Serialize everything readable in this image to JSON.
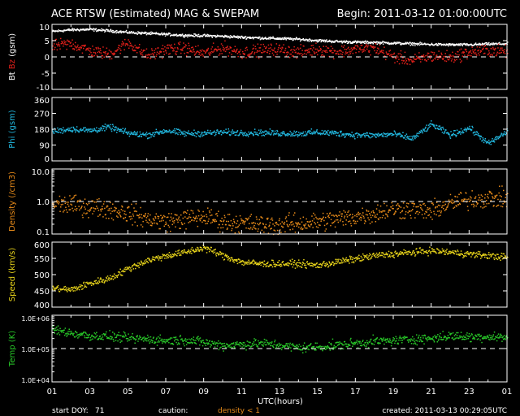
{
  "header": {
    "title": "ACE RTSW (Estimated) MAG & SWEPAM",
    "begin": "Begin: 2011-03-12 01:00:00UTC"
  },
  "footer": {
    "start_doy_label": "start DOY:",
    "start_doy": "71",
    "caution_label": "caution:",
    "caution_value": "density < 1",
    "created": "created: 2011-03-13 00:29:05UTC"
  },
  "colors": {
    "bt": "#ffffff",
    "bz": "#e0201a",
    "phi": "#22b8e0",
    "density": "#e68a1a",
    "speed": "#e6d21a",
    "temp": "#28c828",
    "axis": "#ffffff",
    "background": "#000000"
  },
  "chart_data": {
    "type": "scatter",
    "x_axis": {
      "label": "UTC(hours)",
      "ticks": [
        "01",
        "03",
        "05",
        "07",
        "09",
        "11",
        "13",
        "15",
        "17",
        "19",
        "21",
        "23",
        "01"
      ],
      "range_hours": [
        0,
        24
      ]
    },
    "panels": [
      {
        "id": "mag",
        "ylabel": [
          {
            "text": "Bt",
            "color": "#ffffff"
          },
          {
            "text": " Bz",
            "color": "#e0201a"
          },
          {
            "text": " (gsm)",
            "color": "#ffffff"
          }
        ],
        "ylim": [
          -10,
          10
        ],
        "scale": "linear",
        "yticks": [
          10,
          5,
          0,
          -5,
          -10
        ],
        "ytick_labels": [
          "10",
          "5",
          "0",
          "-5",
          "-10"
        ],
        "dashed_line": 0,
        "series": [
          {
            "name": "Bt",
            "color": "#ffffff",
            "knots_hours": [
              0,
              1,
              2,
              3,
              4,
              5,
              6,
              7,
              8,
              9,
              10,
              11,
              12,
              13,
              14,
              15,
              16,
              17,
              18,
              19,
              20,
              21,
              22,
              23,
              24
            ],
            "values": [
              8.0,
              8.5,
              8.6,
              8.2,
              7.7,
              7.4,
              7.1,
              6.8,
              6.7,
              6.5,
              6.2,
              6.0,
              5.8,
              5.6,
              5.2,
              4.9,
              4.7,
              4.6,
              4.4,
              4.2,
              4.0,
              3.9,
              3.9,
              4.1,
              4.2
            ],
            "noise": 0.35
          },
          {
            "name": "Bz",
            "color": "#e0201a",
            "knots_hours": [
              0,
              1,
              2,
              3,
              4,
              5,
              6,
              7,
              8,
              9,
              10,
              11,
              12,
              13,
              14,
              15,
              16,
              17,
              18,
              19,
              20,
              21,
              22,
              23,
              24
            ],
            "values": [
              3.5,
              4.2,
              2.0,
              1.0,
              4.5,
              0.5,
              2.5,
              2.8,
              1.2,
              3.0,
              1.5,
              2.2,
              2.4,
              1.6,
              2.6,
              1.8,
              2.4,
              2.8,
              0.2,
              -1.0,
              0.5,
              0.0,
              1.6,
              2.2,
              1.8
            ],
            "noise": 1.6
          }
        ]
      },
      {
        "id": "phi",
        "ylabel": [
          {
            "text": "Phi (gsm)",
            "color": "#22b8e0"
          }
        ],
        "ylim": [
          0,
          360
        ],
        "scale": "linear",
        "yticks": [
          360,
          270,
          180,
          90,
          0
        ],
        "ytick_labels": [
          "360",
          "270",
          "180",
          "90",
          "0"
        ],
        "series": [
          {
            "name": "Phi",
            "color": "#22b8e0",
            "knots_hours": [
              0,
              1,
              2,
              3,
              4,
              5,
              6,
              7,
              8,
              9,
              10,
              11,
              12,
              13,
              14,
              15,
              16,
              17,
              18,
              19,
              20,
              21,
              22,
              23,
              24
            ],
            "values": [
              170,
              185,
              175,
              195,
              160,
              150,
              175,
              158,
              160,
              165,
              162,
              164,
              160,
              158,
              165,
              160,
              150,
              148,
              155,
              130,
              210,
              150,
              190,
              100,
              170
            ],
            "noise": 15
          }
        ]
      },
      {
        "id": "density",
        "ylabel": [
          {
            "text": "Density (/cm3)",
            "color": "#e68a1a"
          }
        ],
        "ylim": [
          0.1,
          10
        ],
        "scale": "log",
        "yticks": [
          10,
          1,
          0.1
        ],
        "ytick_labels": [
          "10.0",
          "1.0",
          "0.1"
        ],
        "dashed_line": 1,
        "series": [
          {
            "name": "Density",
            "color": "#e68a1a",
            "knots_hours": [
              0,
              1,
              2,
              3,
              4,
              5,
              6,
              7,
              8,
              9,
              10,
              11,
              12,
              13,
              14,
              15,
              16,
              17,
              18,
              19,
              20,
              21,
              22,
              23,
              24
            ],
            "values": [
              0.9,
              0.8,
              0.7,
              0.6,
              0.45,
              0.3,
              0.25,
              0.3,
              0.35,
              0.25,
              0.22,
              0.2,
              0.2,
              0.22,
              0.25,
              0.3,
              0.35,
              0.45,
              0.6,
              0.6,
              0.5,
              0.9,
              1.2,
              1.3,
              1.3
            ],
            "noise": 0.25
          }
        ]
      },
      {
        "id": "speed",
        "ylabel": [
          {
            "text": "Speed (km/s)",
            "color": "#e6d21a"
          }
        ],
        "ylim": [
          400,
          600
        ],
        "scale": "linear",
        "yticks": [
          600,
          550,
          500,
          450,
          400
        ],
        "ytick_labels": [
          "600",
          "550",
          "500",
          "450",
          "400"
        ],
        "series": [
          {
            "name": "Speed",
            "color": "#e6d21a",
            "knots_hours": [
              0,
              1,
              2,
              3,
              4,
              5,
              6,
              7,
              8,
              9,
              10,
              11,
              12,
              13,
              14,
              15,
              16,
              17,
              18,
              19,
              20,
              21,
              22,
              23,
              24
            ],
            "values": [
              460,
              455,
              475,
              490,
              520,
              545,
              560,
              570,
              585,
              560,
              540,
              535,
              535,
              535,
              530,
              540,
              550,
              560,
              565,
              570,
              575,
              570,
              565,
              560,
              555
            ],
            "noise": 9
          }
        ]
      },
      {
        "id": "temp",
        "ylabel": [
          {
            "text": "Temp (K)",
            "color": "#28c828"
          }
        ],
        "ylim": [
          10000,
          1000000
        ],
        "scale": "log",
        "yticks": [
          1000000,
          100000,
          10000
        ],
        "ytick_labels": [
          "1.0E+06",
          "1.0E+05",
          "1.0E+04"
        ],
        "dashed_line": 100000,
        "series": [
          {
            "name": "Temp",
            "color": "#28c828",
            "knots_hours": [
              0,
              1,
              2,
              3,
              4,
              5,
              6,
              7,
              8,
              9,
              10,
              11,
              12,
              13,
              14,
              15,
              16,
              17,
              18,
              19,
              20,
              21,
              22,
              23,
              24
            ],
            "values": [
              380000,
              300000,
              250000,
              240000,
              210000,
              200000,
              180000,
              190000,
              160000,
              130000,
              140000,
              150000,
              130000,
              110000,
              115000,
              130000,
              150000,
              170000,
              180000,
              200000,
              210000,
              250000,
              230000,
              240000,
              220000
            ],
            "noise": 0.12
          }
        ]
      }
    ]
  }
}
